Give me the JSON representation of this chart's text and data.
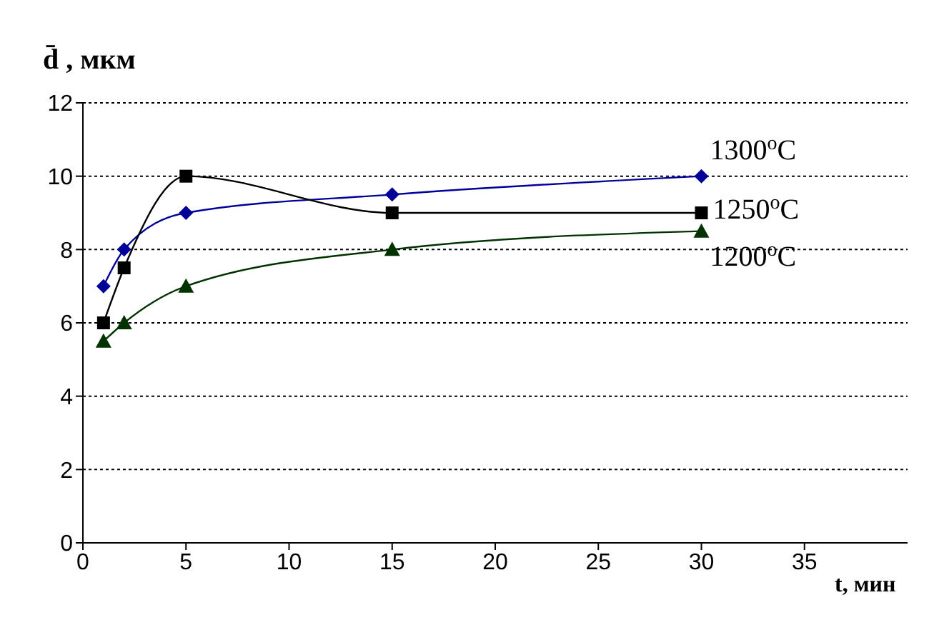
{
  "chart_data": {
    "type": "line",
    "xlabel": "t, мин",
    "ylabel": "d̄ , мкм",
    "xlim": [
      0,
      40
    ],
    "xticks": [
      0,
      5,
      10,
      15,
      20,
      25,
      30,
      35
    ],
    "ylim": [
      0,
      12
    ],
    "yticks": [
      0,
      2,
      4,
      6,
      8,
      10,
      12
    ],
    "grid": "y",
    "x": [
      1,
      2,
      5,
      15,
      30
    ],
    "series": [
      {
        "name": "1300$^{o}$C",
        "color": "#000099",
        "marker": "diamond",
        "values": [
          7,
          8,
          9,
          9.5,
          10
        ]
      },
      {
        "name": "1250$^{o}$C",
        "color": "#000000",
        "marker": "square",
        "values": [
          6,
          7.5,
          10,
          9,
          9
        ]
      },
      {
        "name": "1200$^{o}$C",
        "color": "#003300",
        "marker": "triangle",
        "values": [
          5.5,
          6,
          7,
          8,
          8.5
        ]
      }
    ]
  }
}
